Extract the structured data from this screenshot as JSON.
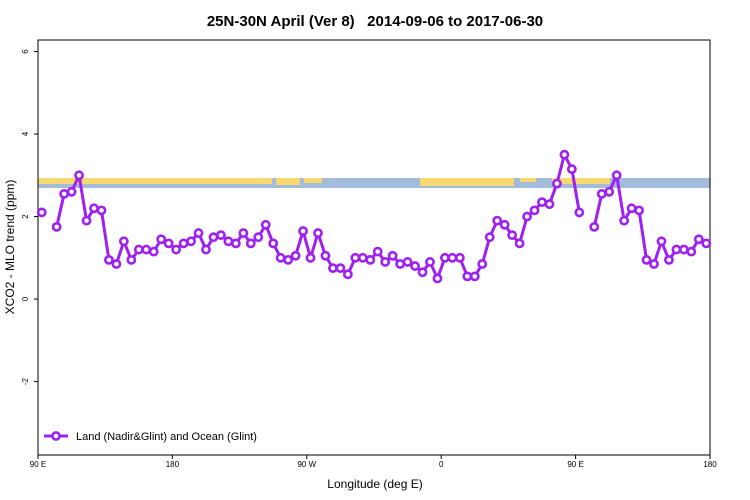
{
  "chart_data": {
    "type": "line",
    "title": "25N-30N April (Ver 8)   2014-09-06 to 2017-06-30",
    "x_label": "Longitude (deg E)",
    "y_label": "XCO2 - MLO trend (ppm)",
    "x": [
      92.5,
      97.5,
      102.5,
      107.5,
      112.5,
      117.5,
      122.5,
      127.5,
      132.5,
      137.5,
      142.5,
      147.5,
      152.5,
      157.5,
      162.5,
      167.5,
      172.5,
      177.5,
      182.5,
      187.5,
      192.5,
      197.5,
      202.5,
      207.5,
      212.5,
      217.5,
      222.5,
      227.5,
      232.5,
      237.5,
      242.5,
      247.5,
      252.5,
      257.5,
      262.5,
      267.5,
      272.5,
      277.5,
      282.5,
      287.5,
      292.5,
      297.5,
      302.5,
      307.5,
      312.5,
      317.5,
      322.5,
      327.5,
      332.5,
      337.5,
      342.5,
      347.5,
      352.5,
      357.5,
      362.5,
      367.5,
      372.5,
      377.5,
      382.5,
      387.5,
      392.5,
      397.5,
      402.5,
      407.5,
      412.5,
      417.5,
      422.5,
      427.5,
      432.5,
      437.5,
      442.5,
      447.5,
      452.5,
      457.5,
      462.5,
      467.5,
      472.5,
      477.5,
      482.5,
      487.5,
      492.5,
      497.5,
      502.5,
      507.5,
      512.5,
      517.5,
      522.5,
      527.5,
      532.5,
      537.5
    ],
    "series": [
      {
        "name": "Land (Nadir&Glint) and Ocean (Glint)",
        "color": "#a020f0",
        "values": [
          2.1,
          null,
          1.75,
          2.55,
          2.6,
          3.0,
          1.9,
          2.2,
          2.15,
          0.95,
          0.85,
          1.4,
          0.95,
          1.2,
          1.2,
          1.15,
          1.45,
          1.35,
          1.2,
          1.35,
          1.4,
          1.6,
          1.2,
          1.5,
          1.55,
          1.4,
          1.35,
          1.6,
          1.35,
          1.5,
          1.8,
          1.35,
          1.0,
          0.95,
          1.05,
          1.65,
          1.0,
          1.6,
          1.05,
          0.75,
          0.75,
          0.6,
          1.0,
          1.0,
          0.95,
          1.15,
          0.9,
          1.05,
          0.85,
          0.9,
          0.8,
          0.65,
          0.9,
          0.5,
          1.0,
          1.0,
          1.0,
          0.55,
          0.55,
          0.85,
          1.5,
          1.9,
          1.8,
          1.55,
          1.35,
          2.0,
          2.15,
          2.35,
          2.3,
          2.8,
          3.5,
          3.15,
          2.1,
          null,
          1.75,
          2.55,
          2.6,
          3.0,
          1.9,
          2.2,
          2.15,
          0.95,
          0.85,
          1.4,
          0.95,
          1.2,
          1.2,
          1.15,
          1.45,
          1.35
        ]
      }
    ],
    "xlim": [
      90,
      540
    ],
    "xticks": [
      {
        "value": 90,
        "label": "90 E"
      },
      180,
      {
        "value": 270,
        "label": "90 W"
      },
      {
        "value": 360,
        "label": "0"
      },
      {
        "value": 450,
        "label": "90 E"
      },
      {
        "value": 540,
        "label": "180"
      }
    ],
    "ylim": [
      -3.78,
      6.28
    ],
    "yticks": [
      -2,
      0,
      2,
      4,
      6
    ],
    "legend": "bottom-left"
  }
}
